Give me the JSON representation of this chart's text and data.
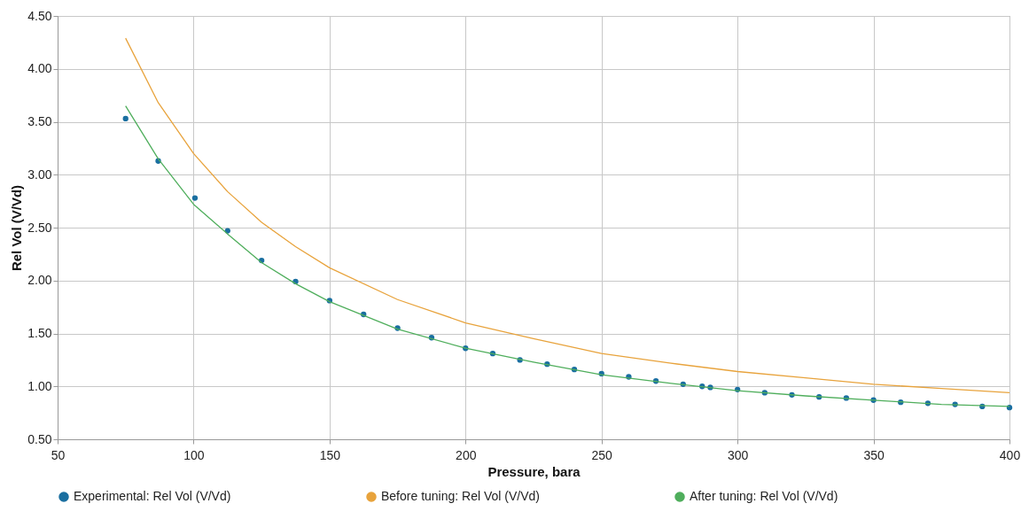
{
  "chart_data": {
    "type": "line",
    "xlabel": "Pressure, bara",
    "ylabel": "Rel Vol (V/Vd)",
    "xlim": [
      50,
      400
    ],
    "xticks": [
      50,
      100,
      150,
      200,
      250,
      300,
      350,
      400
    ],
    "ylim": [
      0.5,
      4.5
    ],
    "yticks": [
      {
        "value": 0.5,
        "label": "0.50"
      },
      {
        "value": 1,
        "label": "1.00"
      },
      {
        "value": 1.5,
        "label": "1.50"
      },
      {
        "value": 2,
        "label": "2.00"
      },
      {
        "value": 2.5,
        "label": "2.50"
      },
      {
        "value": 3,
        "label": "3.00"
      },
      {
        "value": 3.5,
        "label": "3.50"
      },
      {
        "value": 4,
        "label": "4.00"
      },
      {
        "value": 4.5,
        "label": "4.50"
      }
    ],
    "grid": true,
    "legend": "bottom",
    "series": [
      {
        "name": "Experimental: Rel Vol (V/Vd)",
        "type": "scatter",
        "marker": "circle",
        "color": "#1a6fa0",
        "x": [
          75,
          87,
          100.5,
          112.5,
          125,
          137.5,
          150,
          162.5,
          175,
          187.5,
          200,
          210,
          220,
          230,
          240,
          250,
          260,
          270,
          280,
          287,
          290,
          300,
          310,
          320,
          330,
          340,
          350,
          360,
          370,
          380,
          390,
          400
        ],
        "values": [
          3.53,
          3.13,
          2.78,
          2.47,
          2.19,
          1.99,
          1.81,
          1.68,
          1.55,
          1.46,
          1.36,
          1.31,
          1.25,
          1.21,
          1.16,
          1.12,
          1.09,
          1.05,
          1.02,
          1.0,
          0.99,
          0.97,
          0.94,
          0.92,
          0.9,
          0.89,
          0.87,
          0.85,
          0.84,
          0.83,
          0.81,
          0.8
        ]
      },
      {
        "name": "Before tuning: Rel Vol (V/Vd)",
        "color": "#e8a33c",
        "x": [
          75,
          87,
          100,
          112.5,
          125,
          137.5,
          150,
          175,
          200,
          225,
          250,
          275,
          300,
          325,
          350,
          375,
          400
        ],
        "values": [
          4.29,
          3.68,
          3.2,
          2.84,
          2.55,
          2.32,
          2.12,
          1.82,
          1.6,
          1.45,
          1.31,
          1.22,
          1.14,
          1.08,
          1.02,
          0.98,
          0.94
        ]
      },
      {
        "name": "After tuning: Rel Vol (V/Vd)",
        "color": "#4fae5c",
        "x": [
          75,
          87,
          100,
          112.5,
          125,
          137.5,
          150,
          175,
          200,
          225,
          250,
          275,
          300,
          325,
          350,
          375,
          400
        ],
        "values": [
          3.65,
          3.15,
          2.72,
          2.44,
          2.17,
          1.97,
          1.8,
          1.54,
          1.36,
          1.23,
          1.11,
          1.03,
          0.96,
          0.91,
          0.87,
          0.83,
          0.81
        ]
      }
    ]
  }
}
